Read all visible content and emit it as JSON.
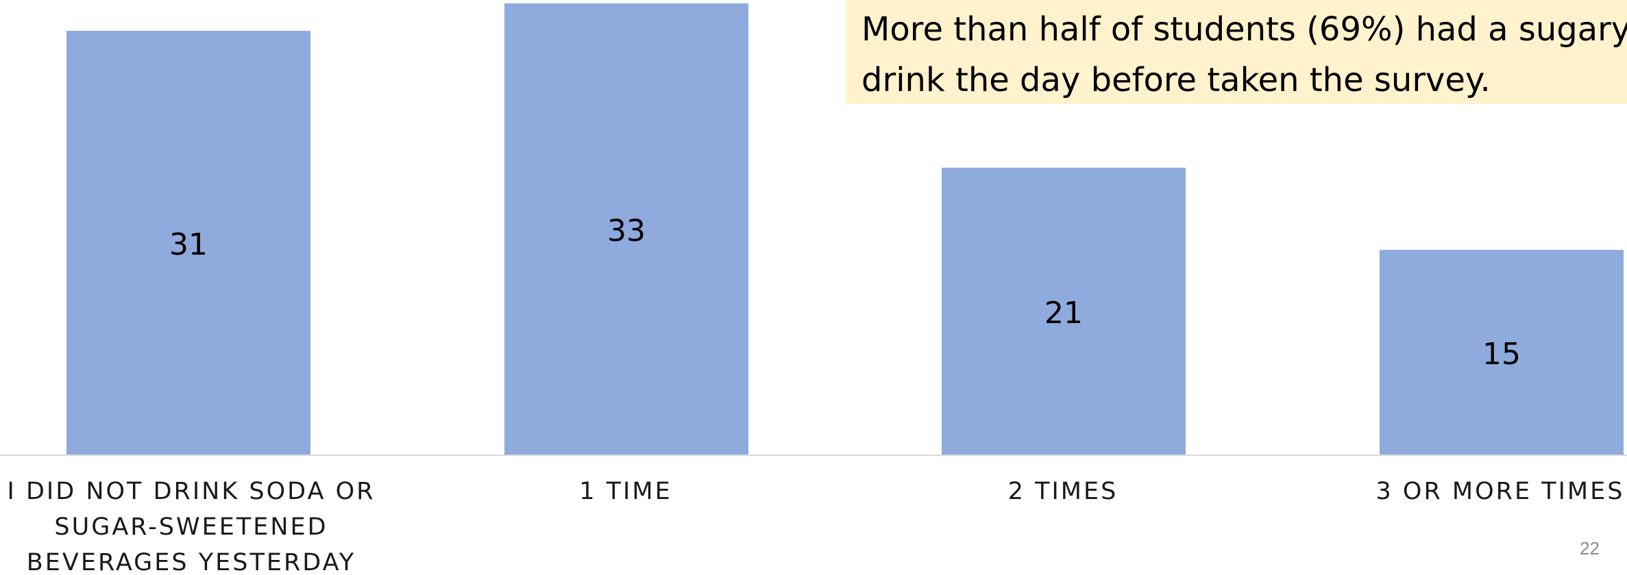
{
  "callout": {
    "line1": "More than half of students (69%) had a sugary",
    "line2": "drink the day before taken the survey."
  },
  "slide_number": "22",
  "colors": {
    "bar": "#8faadc",
    "baseline": "#d9d9d9",
    "callout_bg": "#fff2cc"
  },
  "chart_data": {
    "type": "bar",
    "categories": [
      "I DID NOT DRINK SODA OR SUGAR-SWEETENED BEVERAGES YESTERDAY",
      "1 TIME",
      "2 TIMES",
      "3 OR MORE TIMES"
    ],
    "values": [
      31,
      33,
      21,
      15
    ],
    "data_labels": [
      "31",
      "33",
      "21",
      "15"
    ],
    "title": "",
    "xlabel": "",
    "ylabel": "",
    "ylim": [
      0,
      33
    ],
    "grid": false,
    "legend": "none"
  }
}
